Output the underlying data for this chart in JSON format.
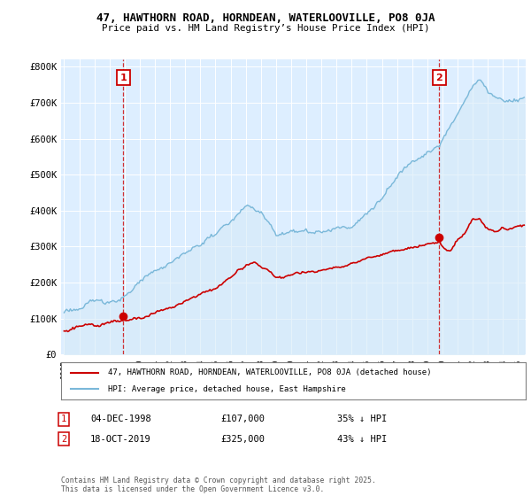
{
  "title": "47, HAWTHORN ROAD, HORNDEAN, WATERLOOVILLE, PO8 0JA",
  "subtitle": "Price paid vs. HM Land Registry’s House Price Index (HPI)",
  "ylabel_ticks": [
    "£0",
    "£100K",
    "£200K",
    "£300K",
    "£400K",
    "£500K",
    "£600K",
    "£700K",
    "£800K"
  ],
  "ytick_values": [
    0,
    100000,
    200000,
    300000,
    400000,
    500000,
    600000,
    700000,
    800000
  ],
  "ylim": [
    0,
    820000
  ],
  "xlim_start": 1994.8,
  "xlim_end": 2025.5,
  "hpi_color": "#7ab8d9",
  "hpi_fill_color": "#d6eaf8",
  "price_color": "#cc0000",
  "marker1_date": 1998.92,
  "marker1_price": 107000,
  "marker2_date": 2019.79,
  "marker2_price": 325000,
  "legend_label1": "47, HAWTHORN ROAD, HORNDEAN, WATERLOOVILLE, PO8 0JA (detached house)",
  "legend_label2": "HPI: Average price, detached house, East Hampshire",
  "footer": "Contains HM Land Registry data © Crown copyright and database right 2025.\nThis data is licensed under the Open Government Licence v3.0.",
  "background_color": "#ffffff",
  "plot_bg_color": "#ddeeff"
}
